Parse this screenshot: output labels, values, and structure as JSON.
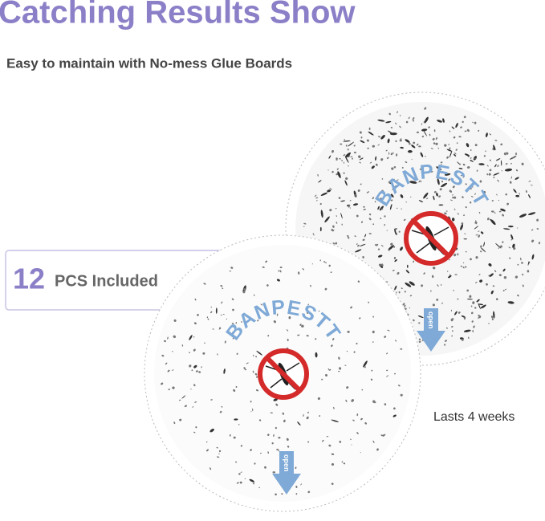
{
  "header": {
    "title": "Catching Results Show",
    "subtitle": "Easy to maintain with No-mess Glue Boards"
  },
  "badge": {
    "count": "12",
    "label": "PCS Included"
  },
  "boards": [
    {
      "brand": "BANPESTT",
      "tab": "open"
    },
    {
      "brand": "BANPESTT",
      "tab": "open"
    }
  ],
  "caption": "Lasts 4 weeks"
}
